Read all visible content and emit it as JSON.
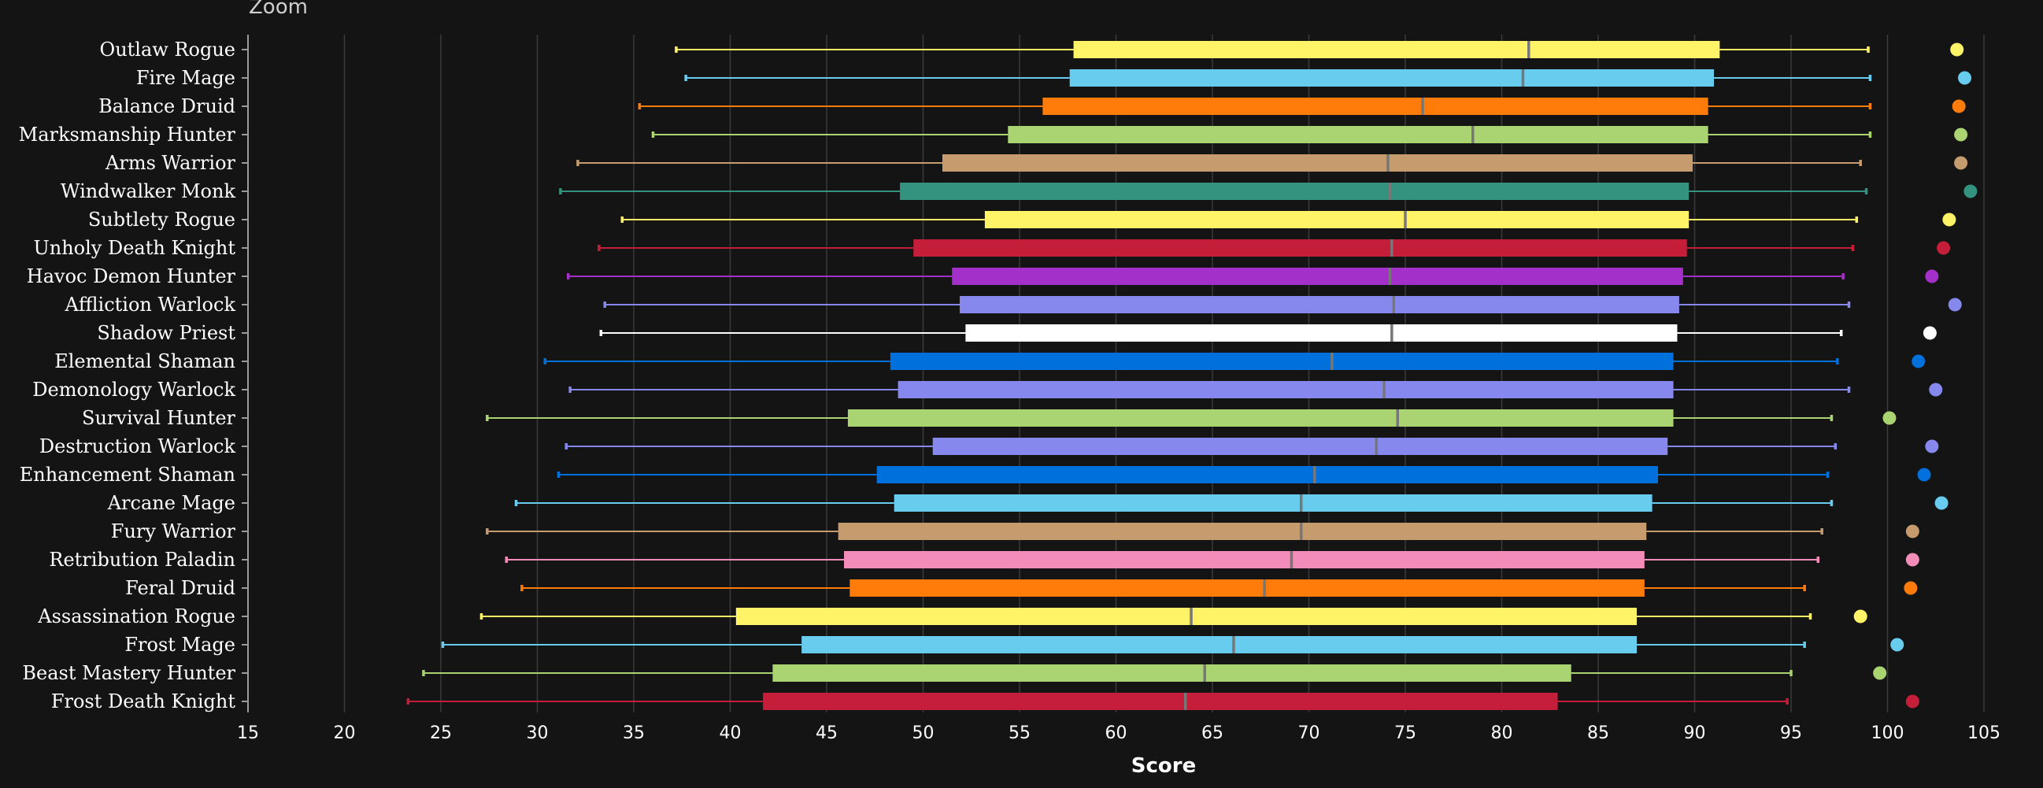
{
  "zoom_label": "Zoom",
  "chart_data": {
    "type": "boxplot",
    "title": "",
    "xlabel": "Score",
    "xlim": [
      15,
      105
    ],
    "xticks": [
      15,
      20,
      25,
      30,
      35,
      40,
      45,
      50,
      55,
      60,
      65,
      70,
      75,
      80,
      85,
      90,
      95,
      100,
      105
    ],
    "grid": true,
    "series": [
      {
        "name": "Outlaw Rogue",
        "color": "#FFF468",
        "min": 37.2,
        "q1": 57.8,
        "median": 81.4,
        "q3": 91.3,
        "max": 99.0,
        "point": 103.6
      },
      {
        "name": "Fire Mage",
        "color": "#68CCEF",
        "min": 37.7,
        "q1": 57.6,
        "median": 81.1,
        "q3": 91.0,
        "max": 99.1,
        "point": 104.0
      },
      {
        "name": "Balance Druid",
        "color": "#FF7C0A",
        "min": 35.3,
        "q1": 56.2,
        "median": 75.9,
        "q3": 90.7,
        "max": 99.1,
        "point": 103.7
      },
      {
        "name": "Marksmanship Hunter",
        "color": "#AAD372",
        "min": 36.0,
        "q1": 54.4,
        "median": 78.5,
        "q3": 90.7,
        "max": 99.1,
        "point": 103.8
      },
      {
        "name": "Arms Warrior",
        "color": "#C69B6D",
        "min": 32.1,
        "q1": 51.0,
        "median": 74.1,
        "q3": 89.9,
        "max": 98.6,
        "point": 103.8
      },
      {
        "name": "Windwalker Monk",
        "color": "#33937F",
        "min": 31.2,
        "q1": 48.8,
        "median": 74.2,
        "q3": 89.7,
        "max": 98.9,
        "point": 104.3
      },
      {
        "name": "Subtlety Rogue",
        "color": "#FFF468",
        "min": 34.4,
        "q1": 53.2,
        "median": 75.0,
        "q3": 89.7,
        "max": 98.4,
        "point": 103.2
      },
      {
        "name": "Unholy Death Knight",
        "color": "#C41E3A",
        "min": 33.2,
        "q1": 49.5,
        "median": 74.3,
        "q3": 89.6,
        "max": 98.2,
        "point": 102.9
      },
      {
        "name": "Havoc Demon Hunter",
        "color": "#A330C9",
        "min": 31.6,
        "q1": 51.5,
        "median": 74.2,
        "q3": 89.4,
        "max": 97.7,
        "point": 102.3
      },
      {
        "name": "Affliction Warlock",
        "color": "#8788EE",
        "min": 33.5,
        "q1": 51.9,
        "median": 74.4,
        "q3": 89.2,
        "max": 98.0,
        "point": 103.5
      },
      {
        "name": "Shadow Priest",
        "color": "#FFFFFF",
        "min": 33.3,
        "q1": 52.2,
        "median": 74.3,
        "q3": 89.1,
        "max": 97.6,
        "point": 102.2
      },
      {
        "name": "Elemental Shaman",
        "color": "#0070DD",
        "min": 30.4,
        "q1": 48.3,
        "median": 71.2,
        "q3": 88.9,
        "max": 97.4,
        "point": 101.6
      },
      {
        "name": "Demonology Warlock",
        "color": "#8788EE",
        "min": 31.7,
        "q1": 48.7,
        "median": 73.9,
        "q3": 88.9,
        "max": 98.0,
        "point": 102.5
      },
      {
        "name": "Survival Hunter",
        "color": "#AAD372",
        "min": 27.4,
        "q1": 46.1,
        "median": 74.6,
        "q3": 88.9,
        "max": 97.1,
        "point": 100.1
      },
      {
        "name": "Destruction Warlock",
        "color": "#8788EE",
        "min": 31.5,
        "q1": 50.5,
        "median": 73.5,
        "q3": 88.6,
        "max": 97.3,
        "point": 102.3
      },
      {
        "name": "Enhancement Shaman",
        "color": "#0070DD",
        "min": 31.1,
        "q1": 47.6,
        "median": 70.3,
        "q3": 88.1,
        "max": 96.9,
        "point": 101.9
      },
      {
        "name": "Arcane Mage",
        "color": "#68CCEF",
        "min": 28.9,
        "q1": 48.5,
        "median": 69.6,
        "q3": 87.8,
        "max": 97.1,
        "point": 102.8
      },
      {
        "name": "Fury Warrior",
        "color": "#C69B6D",
        "min": 27.4,
        "q1": 45.6,
        "median": 69.6,
        "q3": 87.5,
        "max": 96.6,
        "point": 101.3
      },
      {
        "name": "Retribution Paladin",
        "color": "#F48CBA",
        "min": 28.4,
        "q1": 45.9,
        "median": 69.1,
        "q3": 87.4,
        "max": 96.4,
        "point": 101.3
      },
      {
        "name": "Feral Druid",
        "color": "#FF7C0A",
        "min": 29.2,
        "q1": 46.2,
        "median": 67.7,
        "q3": 87.4,
        "max": 95.7,
        "point": 101.2
      },
      {
        "name": "Assassination Rogue",
        "color": "#FFF468",
        "min": 27.1,
        "q1": 40.3,
        "median": 63.9,
        "q3": 87.0,
        "max": 96.0,
        "point": 98.6
      },
      {
        "name": "Frost Mage",
        "color": "#68CCEF",
        "min": 25.1,
        "q1": 43.7,
        "median": 66.1,
        "q3": 87.0,
        "max": 95.7,
        "point": 100.5
      },
      {
        "name": "Beast Mastery Hunter",
        "color": "#AAD372",
        "min": 24.1,
        "q1": 42.2,
        "median": 64.6,
        "q3": 83.6,
        "max": 95.0,
        "point": 99.6
      },
      {
        "name": "Frost Death Knight",
        "color": "#C41E3A",
        "min": 23.3,
        "q1": 41.7,
        "median": 63.6,
        "q3": 82.9,
        "max": 94.8,
        "point": 101.3
      }
    ]
  }
}
